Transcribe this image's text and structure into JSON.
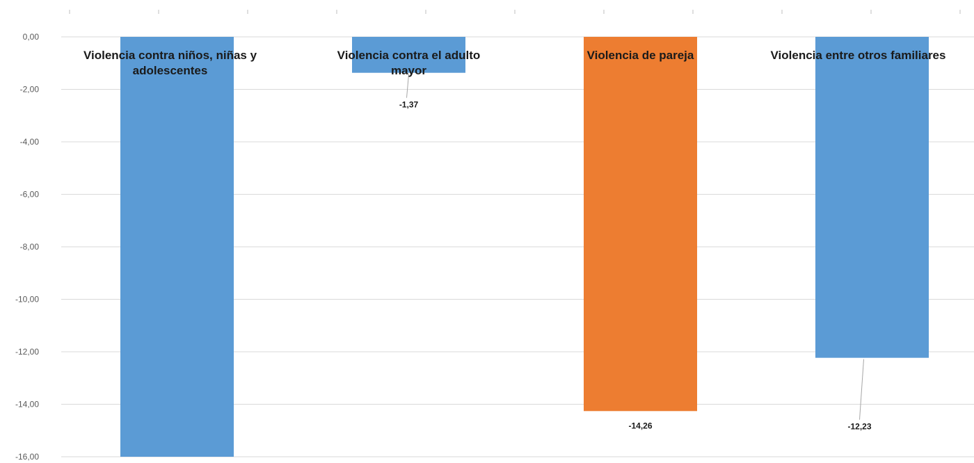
{
  "chart_data": {
    "type": "bar",
    "categories": [
      "Violencia contra niños, niñas y adolescentes",
      "Violencia contra el adulto mayor",
      "Violencia de pareja",
      "Violencia entre otros familiares"
    ],
    "category_label_lines": [
      [
        "Violencia contra niños, niñas y",
        "adolescentes"
      ],
      [
        "Violencia contra el adulto",
        "mayor"
      ],
      [
        "Violencia de pareja"
      ],
      [
        "Violencia entre otros familiares"
      ]
    ],
    "values": [
      -16.0,
      -1.37,
      -14.26,
      -12.23
    ],
    "data_labels": [
      "",
      "-1,37",
      "-14,26",
      "-12,23"
    ],
    "bar_colors": [
      "#5b9bd5",
      "#5b9bd5",
      "#ed7d31",
      "#5b9bd5"
    ],
    "ylim": [
      -16,
      0
    ],
    "yticks": [
      0,
      -2,
      -4,
      -6,
      -8,
      -10,
      -12,
      -14,
      -16
    ],
    "ytick_labels": [
      "0,00",
      "-2,00",
      "-4,00",
      "-6,00",
      "-8,00",
      "-10,00",
      "-12,00",
      "-14,00",
      "-16,00"
    ],
    "grid": true,
    "legend": "none",
    "title": "",
    "xlabel": "",
    "ylabel": ""
  }
}
